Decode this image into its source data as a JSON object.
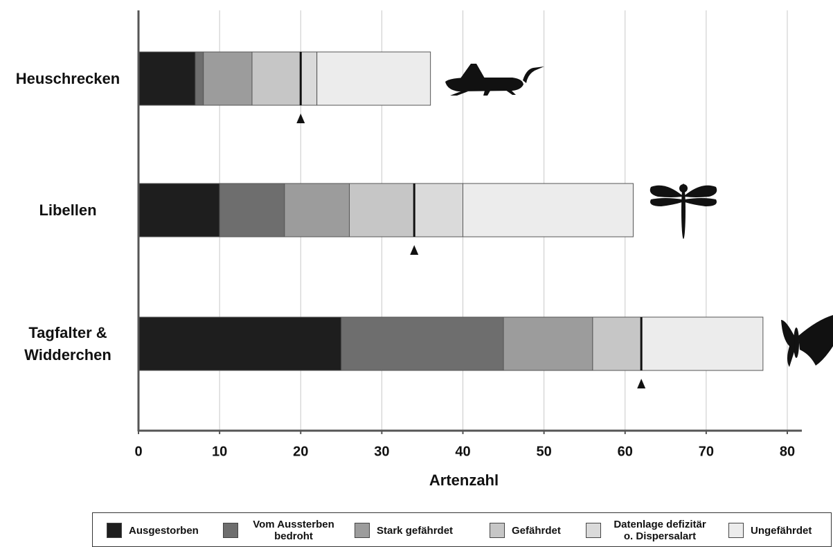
{
  "chart_data": {
    "type": "stacked-barh",
    "x_label": "Artenzahl",
    "categories": [
      "Heuschrecken",
      "Libellen",
      "Tagfalter & Widderchen"
    ],
    "series": [
      {
        "name": "Ausgestorben",
        "color": "#1e1e1e",
        "values": [
          7,
          10,
          25
        ]
      },
      {
        "name": "Vom Aussterben bedroht",
        "color": "#6e6e6e",
        "values": [
          1,
          8,
          20
        ]
      },
      {
        "name": "Stark gefährdet",
        "color": "#9c9c9c",
        "values": [
          6,
          8,
          11
        ]
      },
      {
        "name": "Gefährdet",
        "color": "#c6c6c6",
        "values": [
          6,
          8,
          6
        ]
      },
      {
        "name": "Datenlage defizitär o. Dispersalart",
        "color": "#dadada",
        "values": [
          2,
          6,
          0
        ]
      },
      {
        "name": "Ungefährdet",
        "color": "#ececec",
        "values": [
          14,
          21,
          15
        ]
      }
    ],
    "markers": [
      20,
      34,
      62
    ],
    "xlim": [
      0,
      82
    ],
    "xticks": [
      0,
      10,
      20,
      30,
      40,
      50,
      60,
      70,
      80
    ],
    "grid": true
  }
}
